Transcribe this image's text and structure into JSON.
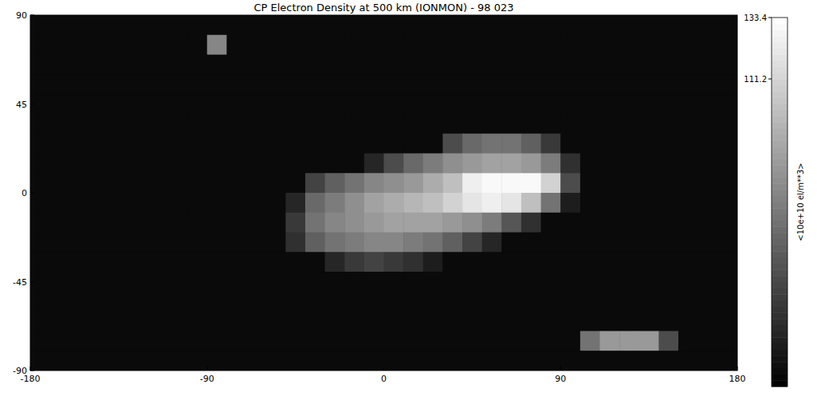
{
  "chart_data": {
    "type": "heatmap",
    "title": "CP Electron Density at 500 km (IONMON) - 98 023",
    "xlim": [
      -180,
      180
    ],
    "ylim": [
      -90,
      90
    ],
    "xticks": [
      -180,
      -90,
      0,
      90,
      180
    ],
    "yticks": [
      -90,
      -45,
      0,
      45,
      90
    ],
    "grid": false,
    "x": [
      -175,
      -165,
      -155,
      -145,
      -135,
      -125,
      -115,
      -105,
      -95,
      -85,
      -75,
      -65,
      -55,
      -45,
      -35,
      -25,
      -15,
      -5,
      5,
      15,
      25,
      35,
      45,
      55,
      65,
      75,
      85,
      95,
      105,
      115,
      125,
      135,
      145,
      155,
      165,
      175
    ],
    "y": [
      85,
      75,
      65,
      55,
      45,
      35,
      25,
      15,
      5,
      -5,
      -15,
      -25,
      -35,
      -45,
      -55,
      -65,
      -75,
      -85
    ],
    "cells": [
      [
        5,
        5,
        5,
        5,
        5,
        5,
        5,
        5,
        5,
        5,
        5,
        5,
        5,
        5,
        5,
        5,
        5,
        5,
        5,
        5,
        5,
        5,
        5,
        5,
        5,
        5,
        5,
        5,
        5,
        5,
        5,
        5,
        5,
        5,
        5,
        5
      ],
      [
        5,
        5,
        5,
        5,
        5,
        5,
        5,
        5,
        5,
        70,
        5,
        5,
        5,
        5,
        5,
        5,
        5,
        5,
        5,
        5,
        5,
        5,
        5,
        5,
        5,
        5,
        5,
        5,
        5,
        5,
        5,
        5,
        5,
        5,
        5,
        5
      ],
      [
        5,
        5,
        5,
        5,
        5,
        5,
        5,
        5,
        5,
        5,
        5,
        5,
        5,
        5,
        5,
        5,
        5,
        5,
        5,
        5,
        5,
        5,
        5,
        5,
        5,
        5,
        5,
        5,
        5,
        5,
        5,
        5,
        5,
        5,
        5,
        5
      ],
      [
        5,
        5,
        5,
        5,
        5,
        5,
        5,
        5,
        5,
        5,
        5,
        5,
        5,
        5,
        5,
        5,
        5,
        5,
        5,
        5,
        5,
        5,
        5,
        5,
        5,
        5,
        5,
        5,
        5,
        5,
        5,
        5,
        5,
        5,
        5,
        5
      ],
      [
        5,
        5,
        5,
        5,
        5,
        5,
        5,
        5,
        5,
        5,
        5,
        5,
        5,
        5,
        5,
        5,
        5,
        5,
        5,
        5,
        5,
        5,
        5,
        5,
        5,
        5,
        5,
        5,
        5,
        5,
        5,
        5,
        5,
        5,
        5,
        5
      ],
      [
        5,
        5,
        5,
        5,
        5,
        5,
        5,
        5,
        5,
        5,
        5,
        5,
        5,
        5,
        5,
        5,
        5,
        5,
        5,
        5,
        5,
        5,
        5,
        5,
        5,
        5,
        5,
        5,
        5,
        5,
        5,
        5,
        5,
        5,
        5,
        5
      ],
      [
        5,
        5,
        5,
        5,
        5,
        5,
        5,
        5,
        5,
        5,
        5,
        5,
        5,
        5,
        5,
        5,
        5,
        5,
        5,
        5,
        5,
        40,
        55,
        60,
        60,
        50,
        30,
        5,
        5,
        5,
        5,
        5,
        5,
        5,
        5,
        5
      ],
      [
        5,
        5,
        5,
        5,
        5,
        5,
        5,
        5,
        5,
        5,
        5,
        5,
        5,
        5,
        5,
        5,
        5,
        20,
        40,
        55,
        65,
        75,
        80,
        85,
        85,
        80,
        65,
        25,
        5,
        5,
        5,
        5,
        5,
        5,
        5,
        5
      ],
      [
        5,
        5,
        5,
        5,
        5,
        5,
        5,
        5,
        5,
        5,
        5,
        5,
        5,
        5,
        35,
        50,
        60,
        70,
        75,
        80,
        90,
        100,
        125,
        130,
        130,
        130,
        110,
        40,
        5,
        5,
        5,
        5,
        5,
        5,
        5,
        5
      ],
      [
        5,
        5,
        5,
        5,
        5,
        5,
        5,
        5,
        5,
        5,
        5,
        5,
        5,
        20,
        55,
        65,
        75,
        85,
        90,
        95,
        100,
        110,
        120,
        125,
        120,
        100,
        60,
        15,
        5,
        5,
        5,
        5,
        5,
        5,
        5,
        5
      ],
      [
        5,
        5,
        5,
        5,
        5,
        5,
        5,
        5,
        5,
        5,
        5,
        5,
        5,
        30,
        60,
        70,
        75,
        80,
        85,
        85,
        85,
        80,
        75,
        65,
        45,
        25,
        5,
        5,
        5,
        5,
        5,
        5,
        5,
        5,
        5,
        5
      ],
      [
        5,
        5,
        5,
        5,
        5,
        5,
        5,
        5,
        5,
        5,
        5,
        5,
        5,
        25,
        50,
        60,
        65,
        70,
        70,
        65,
        60,
        50,
        35,
        20,
        5,
        5,
        5,
        5,
        5,
        5,
        5,
        5,
        5,
        5,
        5,
        5
      ],
      [
        5,
        5,
        5,
        5,
        5,
        5,
        5,
        5,
        5,
        5,
        5,
        5,
        5,
        5,
        5,
        20,
        30,
        35,
        30,
        25,
        15,
        5,
        5,
        5,
        5,
        5,
        5,
        5,
        5,
        5,
        5,
        5,
        5,
        5,
        5,
        5
      ],
      [
        5,
        5,
        5,
        5,
        5,
        5,
        5,
        5,
        5,
        5,
        5,
        5,
        5,
        5,
        5,
        5,
        5,
        5,
        5,
        5,
        5,
        5,
        5,
        5,
        5,
        5,
        5,
        5,
        5,
        5,
        5,
        5,
        5,
        5,
        5,
        5
      ],
      [
        5,
        5,
        5,
        5,
        5,
        5,
        5,
        5,
        5,
        5,
        5,
        5,
        5,
        5,
        5,
        5,
        5,
        5,
        5,
        5,
        5,
        5,
        5,
        5,
        5,
        5,
        5,
        5,
        5,
        5,
        5,
        5,
        5,
        5,
        5,
        5
      ],
      [
        5,
        5,
        5,
        5,
        5,
        5,
        5,
        5,
        5,
        5,
        5,
        5,
        5,
        5,
        5,
        5,
        5,
        5,
        5,
        5,
        5,
        5,
        5,
        5,
        5,
        5,
        5,
        5,
        5,
        5,
        5,
        5,
        5,
        5,
        5,
        5
      ],
      [
        5,
        5,
        5,
        5,
        5,
        5,
        5,
        5,
        5,
        5,
        5,
        5,
        5,
        5,
        5,
        5,
        5,
        5,
        5,
        5,
        5,
        5,
        5,
        5,
        5,
        5,
        5,
        5,
        60,
        80,
        80,
        80,
        40,
        5,
        5,
        5
      ],
      [
        5,
        5,
        5,
        5,
        5,
        5,
        5,
        5,
        5,
        5,
        5,
        5,
        5,
        5,
        5,
        5,
        5,
        5,
        5,
        5,
        5,
        5,
        5,
        5,
        5,
        5,
        5,
        5,
        5,
        5,
        5,
        5,
        5,
        5,
        5,
        5
      ]
    ],
    "colorbar": {
      "range": [
        0,
        133.4
      ],
      "ticks": [
        111.2,
        133.4
      ],
      "label": "<10e+10 el/m**3>"
    }
  }
}
